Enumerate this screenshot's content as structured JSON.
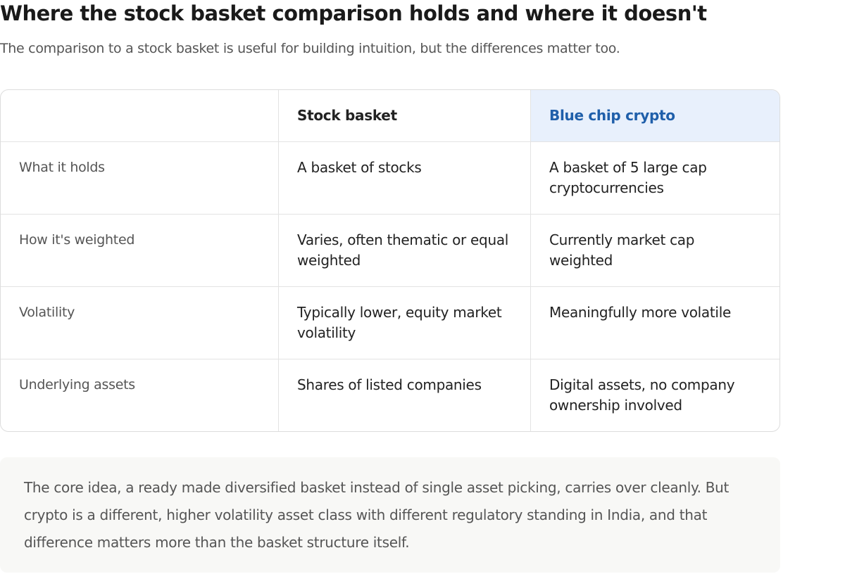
{
  "header": {
    "title": "Where the stock basket comparison holds and where it doesn't",
    "subtitle": "The comparison to a stock basket is useful for building intuition, but the differences matter too."
  },
  "table": {
    "columns": [
      "",
      "Stock basket",
      "Blue chip crypto"
    ],
    "rows": [
      [
        "What it holds",
        "A basket of stocks",
        "A basket of 5 large cap cryptocurrencies"
      ],
      [
        "How it's weighted",
        "Varies, often thematic or equal weighted",
        "Currently market cap weighted"
      ],
      [
        "Volatility",
        "Typically lower, equity market volatility",
        "Meaningfully more volatile"
      ],
      [
        "Underlying assets",
        "Shares of listed companies",
        "Digital assets, no company ownership involved"
      ]
    ]
  },
  "note": {
    "text": "The core idea, a ready made diversified basket instead of single asset picking, carries over cleanly. But crypto is a different, higher volatility asset class with different regulatory standing in India, and that difference matters more than the basket structure itself."
  }
}
